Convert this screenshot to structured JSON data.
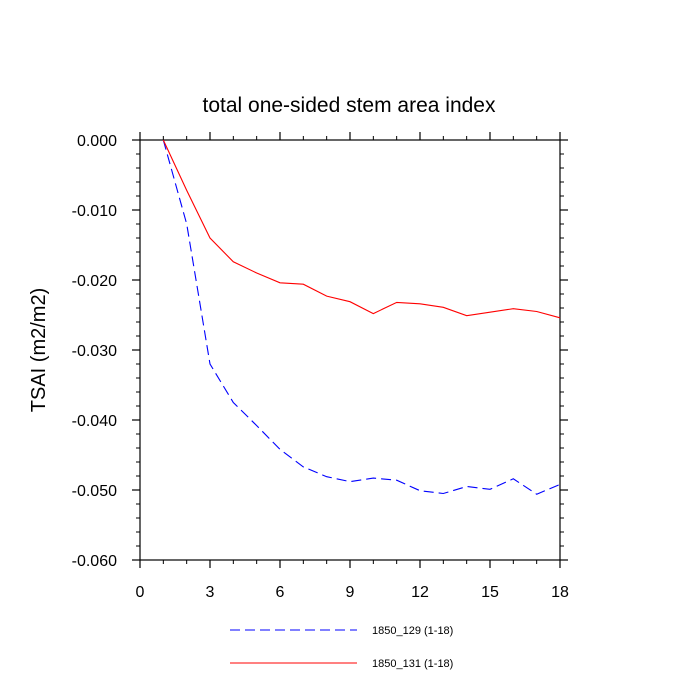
{
  "chart_data": {
    "type": "line",
    "title": "total one-sided stem area index",
    "xlabel": "",
    "ylabel": "TSAI  (m2/m2)",
    "xlim": [
      0,
      18
    ],
    "ylim": [
      -0.06,
      0.0
    ],
    "xticks": [
      "0",
      "3",
      "6",
      "9",
      "12",
      "15",
      "18"
    ],
    "yticks": [
      "0.000",
      "-0.010",
      "-0.020",
      "-0.030",
      "-0.040",
      "-0.050",
      "-0.060"
    ],
    "grid": false,
    "legend_position": "bottom",
    "series": [
      {
        "name": "1850_129 (1-18)",
        "color": "#0000ff",
        "style": "dashed",
        "x": [
          1,
          2,
          3,
          4,
          5,
          6,
          7,
          8,
          9,
          10,
          11,
          12,
          13,
          14,
          15,
          16,
          17,
          18
        ],
        "y": [
          0.0,
          -0.012,
          -0.032,
          -0.0375,
          -0.0408,
          -0.0442,
          -0.0467,
          -0.0481,
          -0.0488,
          -0.0483,
          -0.0486,
          -0.0501,
          -0.0505,
          -0.0495,
          -0.0499,
          -0.0484,
          -0.0506,
          -0.0492
        ]
      },
      {
        "name": "1850_131 (1-18)",
        "color": "#ff0000",
        "style": "solid",
        "x": [
          1,
          2,
          3,
          4,
          5,
          6,
          7,
          8,
          9,
          10,
          11,
          12,
          13,
          14,
          15,
          16,
          17,
          18
        ],
        "y": [
          0.0,
          -0.0072,
          -0.014,
          -0.0174,
          -0.019,
          -0.0204,
          -0.0206,
          -0.0223,
          -0.0231,
          -0.0248,
          -0.0232,
          -0.0234,
          -0.0239,
          -0.0251,
          -0.0246,
          -0.0241,
          -0.0245,
          -0.0254
        ]
      }
    ]
  }
}
